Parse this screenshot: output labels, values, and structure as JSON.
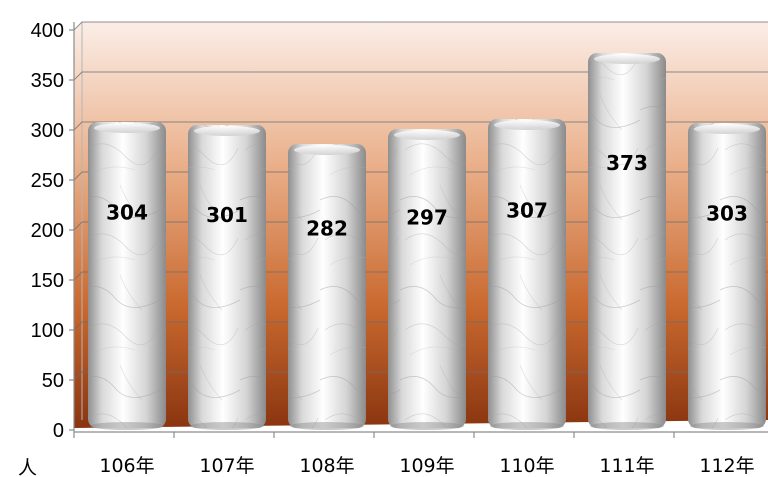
{
  "chart_data": {
    "type": "bar",
    "categories": [
      "106年",
      "107年",
      "108年",
      "109年",
      "110年",
      "111年",
      "112年"
    ],
    "values": [
      304,
      301,
      282,
      297,
      307,
      373,
      303
    ],
    "y_ticks": [
      "0",
      "50",
      "100",
      "150",
      "200",
      "250",
      "300",
      "350",
      "400"
    ],
    "ylim": [
      0,
      400
    ],
    "unit": "人",
    "grid": true,
    "colors": {
      "background_top": "#fbeee7",
      "background_bottom": "#8a3510",
      "bar_light": "#ffffff",
      "bar_mid": "#d9d9d9",
      "bar_dark": "#8f8f8f",
      "gridline": "#6b6b6b"
    }
  }
}
